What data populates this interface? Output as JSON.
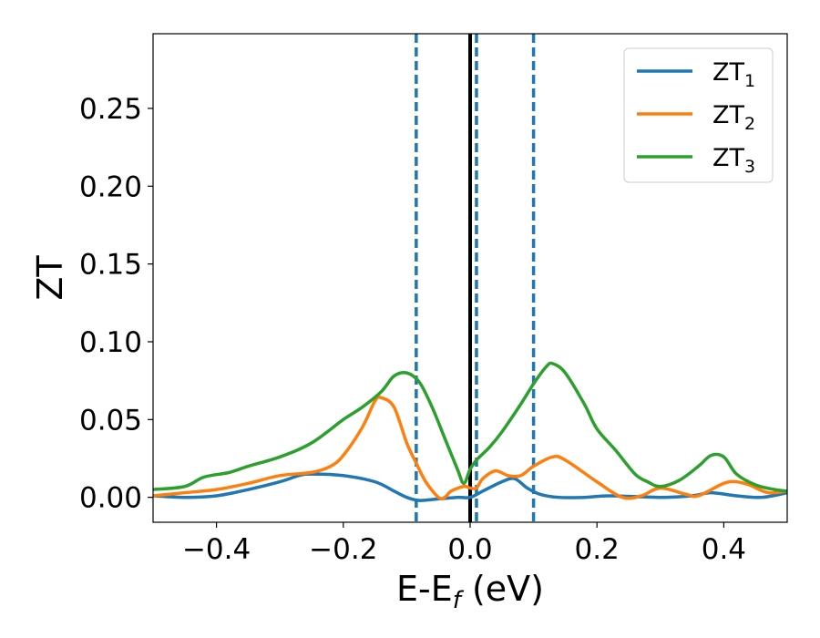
{
  "chart_data": {
    "type": "line",
    "xlabel": {
      "main": "E-E",
      "sub": "f",
      "unit": " (eV)"
    },
    "ylabel": "ZT",
    "xlim": [
      -0.5,
      0.5
    ],
    "ylim": [
      -0.016,
      0.298
    ],
    "xticks": [
      -0.4,
      -0.2,
      0.0,
      0.2,
      0.4
    ],
    "xtick_labels": [
      "−0.4",
      "−0.2",
      "0.0",
      "0.2",
      "0.4"
    ],
    "yticks": [
      0.0,
      0.05,
      0.1,
      0.15,
      0.2,
      0.25
    ],
    "ytick_labels": [
      "0.00",
      "0.05",
      "0.10",
      "0.15",
      "0.20",
      "0.25"
    ],
    "grid": false,
    "legend_position": "top-right",
    "series": [
      {
        "name": "ZT",
        "sub": "1",
        "color": "#1f77b4",
        "points": [
          [
            -0.5,
            0.001
          ],
          [
            -0.45,
            0.0
          ],
          [
            -0.4,
            0.001
          ],
          [
            -0.35,
            0.005
          ],
          [
            -0.3,
            0.01
          ],
          [
            -0.27,
            0.014
          ],
          [
            -0.25,
            0.015
          ],
          [
            -0.2,
            0.014
          ],
          [
            -0.15,
            0.01
          ],
          [
            -0.12,
            0.004
          ],
          [
            -0.1,
            0.0
          ],
          [
            -0.08,
            -0.002
          ],
          [
            -0.05,
            -0.001
          ],
          [
            -0.02,
            0.0
          ],
          [
            0.0,
            0.0
          ],
          [
            0.02,
            0.004
          ],
          [
            0.05,
            0.01
          ],
          [
            0.07,
            0.012
          ],
          [
            0.09,
            0.006
          ],
          [
            0.11,
            0.002
          ],
          [
            0.14,
            0.0
          ],
          [
            0.18,
            0.0
          ],
          [
            0.22,
            0.001
          ],
          [
            0.3,
            0.0
          ],
          [
            0.35,
            0.001
          ],
          [
            0.38,
            0.003
          ],
          [
            0.42,
            0.001
          ],
          [
            0.46,
            0.0
          ],
          [
            0.5,
            0.003
          ]
        ]
      },
      {
        "name": "ZT",
        "sub": "2",
        "color": "#ff7f0e",
        "points": [
          [
            -0.5,
            0.001
          ],
          [
            -0.45,
            0.003
          ],
          [
            -0.4,
            0.005
          ],
          [
            -0.35,
            0.009
          ],
          [
            -0.3,
            0.014
          ],
          [
            -0.25,
            0.016
          ],
          [
            -0.22,
            0.02
          ],
          [
            -0.2,
            0.027
          ],
          [
            -0.17,
            0.045
          ],
          [
            -0.15,
            0.062
          ],
          [
            -0.14,
            0.064
          ],
          [
            -0.12,
            0.058
          ],
          [
            -0.1,
            0.035
          ],
          [
            -0.085,
            0.022
          ],
          [
            -0.07,
            0.01
          ],
          [
            -0.05,
            0.0
          ],
          [
            -0.04,
            0.0
          ],
          [
            -0.03,
            0.004
          ],
          [
            -0.01,
            0.007
          ],
          [
            0.0,
            0.006
          ],
          [
            0.01,
            0.006
          ],
          [
            0.02,
            0.012
          ],
          [
            0.04,
            0.017
          ],
          [
            0.06,
            0.014
          ],
          [
            0.08,
            0.014
          ],
          [
            0.1,
            0.02
          ],
          [
            0.13,
            0.026
          ],
          [
            0.15,
            0.024
          ],
          [
            0.2,
            0.01
          ],
          [
            0.24,
            0.0
          ],
          [
            0.27,
            0.001
          ],
          [
            0.3,
            0.006
          ],
          [
            0.34,
            0.002
          ],
          [
            0.36,
            0.001
          ],
          [
            0.4,
            0.009
          ],
          [
            0.42,
            0.01
          ],
          [
            0.44,
            0.008
          ],
          [
            0.47,
            0.003
          ],
          [
            0.5,
            0.004
          ]
        ]
      },
      {
        "name": "ZT",
        "sub": "3",
        "color": "#2ca02c",
        "points": [
          [
            -0.5,
            0.005
          ],
          [
            -0.45,
            0.007
          ],
          [
            -0.42,
            0.013
          ],
          [
            -0.38,
            0.016
          ],
          [
            -0.35,
            0.02
          ],
          [
            -0.3,
            0.026
          ],
          [
            -0.25,
            0.035
          ],
          [
            -0.2,
            0.05
          ],
          [
            -0.17,
            0.058
          ],
          [
            -0.14,
            0.068
          ],
          [
            -0.12,
            0.078
          ],
          [
            -0.1,
            0.08
          ],
          [
            -0.08,
            0.074
          ],
          [
            -0.06,
            0.058
          ],
          [
            -0.04,
            0.038
          ],
          [
            -0.02,
            0.018
          ],
          [
            -0.01,
            0.009
          ],
          [
            0.0,
            0.018
          ],
          [
            0.01,
            0.024
          ],
          [
            0.03,
            0.032
          ],
          [
            0.05,
            0.042
          ],
          [
            0.08,
            0.06
          ],
          [
            0.1,
            0.073
          ],
          [
            0.12,
            0.084
          ],
          [
            0.13,
            0.086
          ],
          [
            0.15,
            0.08
          ],
          [
            0.18,
            0.06
          ],
          [
            0.2,
            0.044
          ],
          [
            0.23,
            0.03
          ],
          [
            0.26,
            0.015
          ],
          [
            0.28,
            0.01
          ],
          [
            0.3,
            0.007
          ],
          [
            0.33,
            0.011
          ],
          [
            0.36,
            0.02
          ],
          [
            0.38,
            0.027
          ],
          [
            0.4,
            0.026
          ],
          [
            0.42,
            0.015
          ],
          [
            0.45,
            0.008
          ],
          [
            0.48,
            0.005
          ],
          [
            0.5,
            0.004
          ]
        ]
      }
    ],
    "vertical_lines": [
      {
        "x": 0.0,
        "style": "solid",
        "color": "#000000"
      },
      {
        "x": -0.085,
        "style": "dashed",
        "color": "#1f77b4"
      },
      {
        "x": 0.01,
        "style": "dashed",
        "color": "#1f77b4"
      },
      {
        "x": 0.1,
        "style": "dashed",
        "color": "#1f77b4"
      }
    ]
  }
}
